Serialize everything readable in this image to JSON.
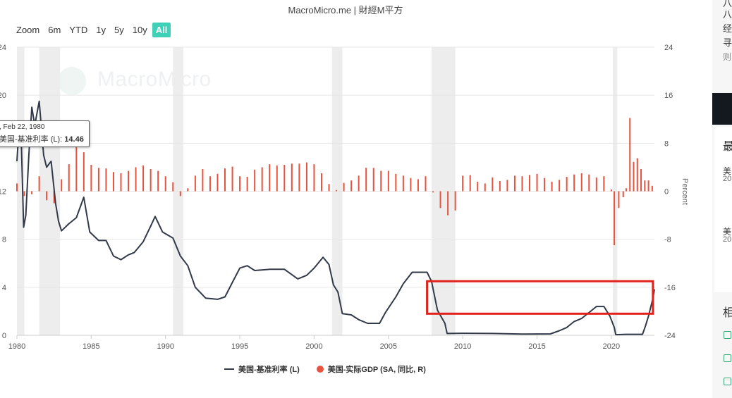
{
  "header": {
    "title": "MacroMicro.me | 財經M平方",
    "watermark": "MacroMicro"
  },
  "range_buttons": [
    {
      "label": "Zoom",
      "active": false
    },
    {
      "label": "6m",
      "active": false
    },
    {
      "label": "YTD",
      "active": false
    },
    {
      "label": "1y",
      "active": false
    },
    {
      "label": "5y",
      "active": false
    },
    {
      "label": "10y",
      "active": false
    },
    {
      "label": "All",
      "active": true
    }
  ],
  "tooltip": {
    "date": ", Feb 22, 1980",
    "series": "美国-基准利率 (L):",
    "value": "14.46"
  },
  "side_panel": {
    "snippets": [
      "八",
      "经",
      "寻",
      "则",
      "最",
      "美",
      "20",
      "美",
      "20",
      "相"
    ]
  },
  "colors": {
    "line": "#323a4a",
    "bars": "#e8533f",
    "recession": "#ededed",
    "highlight_box": "#e0221b",
    "accent_button": "#3fd1b8"
  },
  "chart_data": {
    "type": "line+bar",
    "x_range": [
      1980,
      2022.9
    ],
    "x_ticks": [
      1980,
      1985,
      1990,
      1995,
      2000,
      2005,
      2010,
      2015,
      2020
    ],
    "left_axis": {
      "ticks": [
        "0",
        "4",
        "8",
        "12",
        "16",
        "20",
        "24"
      ],
      "range": [
        0,
        24
      ]
    },
    "right_axis": {
      "label": "Percent",
      "ticks": [
        "-24",
        "-16",
        "-8",
        "0",
        "8",
        "16",
        "24"
      ],
      "range": [
        -24,
        24
      ]
    },
    "recessions": [
      [
        1980.0,
        1980.5
      ],
      [
        1981.5,
        1982.9
      ],
      [
        1990.5,
        1991.2
      ],
      [
        2001.2,
        2001.9
      ],
      [
        2007.9,
        2009.5
      ],
      [
        2020.1,
        2020.4
      ]
    ],
    "series": [
      {
        "name": "美国-基准利率 (L)",
        "kind": "line",
        "axis": "left",
        "points": [
          [
            1980.0,
            14.5
          ],
          [
            1980.15,
            17.5
          ],
          [
            1980.3,
            16.0
          ],
          [
            1980.45,
            9.0
          ],
          [
            1980.6,
            10.0
          ],
          [
            1980.8,
            15.0
          ],
          [
            1981.0,
            19.0
          ],
          [
            1981.2,
            17.5
          ],
          [
            1981.5,
            19.5
          ],
          [
            1981.8,
            15.0
          ],
          [
            1982.0,
            14.0
          ],
          [
            1982.3,
            14.5
          ],
          [
            1982.6,
            11.0
          ],
          [
            1982.8,
            9.5
          ],
          [
            1983.0,
            8.7
          ],
          [
            1983.5,
            9.3
          ],
          [
            1984.0,
            9.8
          ],
          [
            1984.5,
            11.5
          ],
          [
            1984.9,
            8.6
          ],
          [
            1985.5,
            7.9
          ],
          [
            1986.0,
            7.9
          ],
          [
            1986.5,
            6.6
          ],
          [
            1987.0,
            6.3
          ],
          [
            1987.5,
            6.7
          ],
          [
            1987.9,
            6.9
          ],
          [
            1988.5,
            7.8
          ],
          [
            1989.0,
            9.1
          ],
          [
            1989.3,
            9.9
          ],
          [
            1989.8,
            8.6
          ],
          [
            1990.5,
            8.1
          ],
          [
            1991.0,
            6.6
          ],
          [
            1991.5,
            5.8
          ],
          [
            1992.0,
            4.0
          ],
          [
            1992.7,
            3.1
          ],
          [
            1993.5,
            3.0
          ],
          [
            1994.0,
            3.2
          ],
          [
            1994.5,
            4.4
          ],
          [
            1995.0,
            5.6
          ],
          [
            1995.5,
            5.8
          ],
          [
            1996.0,
            5.4
          ],
          [
            1997.0,
            5.5
          ],
          [
            1998.0,
            5.5
          ],
          [
            1998.9,
            4.7
          ],
          [
            1999.5,
            5.0
          ],
          [
            2000.0,
            5.6
          ],
          [
            2000.6,
            6.5
          ],
          [
            2001.0,
            5.9
          ],
          [
            2001.3,
            4.2
          ],
          [
            2001.6,
            3.6
          ],
          [
            2001.9,
            1.8
          ],
          [
            2002.5,
            1.7
          ],
          [
            2003.0,
            1.3
          ],
          [
            2003.6,
            1.0
          ],
          [
            2004.4,
            1.0
          ],
          [
            2004.8,
            1.9
          ],
          [
            2005.5,
            3.2
          ],
          [
            2006.0,
            4.3
          ],
          [
            2006.6,
            5.25
          ],
          [
            2007.6,
            5.25
          ],
          [
            2007.9,
            4.5
          ],
          [
            2008.3,
            2.1
          ],
          [
            2008.8,
            1.0
          ],
          [
            2008.95,
            0.15
          ],
          [
            2010,
            0.17
          ],
          [
            2012,
            0.15
          ],
          [
            2014,
            0.1
          ],
          [
            2015.9,
            0.12
          ],
          [
            2016.5,
            0.38
          ],
          [
            2017.0,
            0.65
          ],
          [
            2017.5,
            1.15
          ],
          [
            2018.0,
            1.4
          ],
          [
            2018.5,
            1.9
          ],
          [
            2019.0,
            2.4
          ],
          [
            2019.5,
            2.4
          ],
          [
            2019.9,
            1.6
          ],
          [
            2020.2,
            0.65
          ],
          [
            2020.3,
            0.05
          ],
          [
            2021.0,
            0.08
          ],
          [
            2022.1,
            0.08
          ],
          [
            2022.3,
            0.8
          ],
          [
            2022.5,
            1.6
          ],
          [
            2022.65,
            2.33
          ],
          [
            2022.8,
            3.08
          ],
          [
            2022.9,
            3.83
          ]
        ]
      },
      {
        "name": "美国-实际GDP (SA, 同比, R)",
        "kind": "bar",
        "axis": "right",
        "points": [
          [
            1980.0,
            1.3
          ],
          [
            1980.5,
            -0.8
          ],
          [
            1981.0,
            -0.5
          ],
          [
            1981.5,
            2.5
          ],
          [
            1982.0,
            -1.5
          ],
          [
            1982.5,
            -2.0
          ],
          [
            1983.0,
            2.0
          ],
          [
            1983.5,
            4.5
          ],
          [
            1984.0,
            7.5
          ],
          [
            1984.5,
            6.5
          ],
          [
            1985.0,
            4.4
          ],
          [
            1985.5,
            3.9
          ],
          [
            1986.0,
            3.8
          ],
          [
            1986.5,
            3.2
          ],
          [
            1987.0,
            3.0
          ],
          [
            1987.5,
            3.4
          ],
          [
            1988.0,
            4.0
          ],
          [
            1988.5,
            4.3
          ],
          [
            1989.0,
            3.7
          ],
          [
            1989.5,
            3.4
          ],
          [
            1990.0,
            2.5
          ],
          [
            1990.5,
            1.5
          ],
          [
            1991.0,
            -0.8
          ],
          [
            1991.5,
            0.5
          ],
          [
            1992.0,
            2.6
          ],
          [
            1992.5,
            3.7
          ],
          [
            1993.0,
            2.5
          ],
          [
            1993.5,
            2.9
          ],
          [
            1994.0,
            3.8
          ],
          [
            1994.5,
            4.1
          ],
          [
            1995.0,
            2.5
          ],
          [
            1995.5,
            2.4
          ],
          [
            1996.0,
            3.6
          ],
          [
            1996.5,
            4.0
          ],
          [
            1997.0,
            4.5
          ],
          [
            1997.5,
            4.3
          ],
          [
            1998.0,
            4.4
          ],
          [
            1998.5,
            4.6
          ],
          [
            1999.0,
            4.6
          ],
          [
            1999.5,
            4.8
          ],
          [
            2000.0,
            4.5
          ],
          [
            2000.5,
            3.0
          ],
          [
            2001.0,
            1.2
          ],
          [
            2001.5,
            0.2
          ],
          [
            2002.0,
            1.4
          ],
          [
            2002.5,
            1.8
          ],
          [
            2003.0,
            2.6
          ],
          [
            2003.5,
            3.9
          ],
          [
            2004.0,
            3.9
          ],
          [
            2004.5,
            3.4
          ],
          [
            2005.0,
            3.4
          ],
          [
            2005.5,
            2.9
          ],
          [
            2006.0,
            2.6
          ],
          [
            2006.5,
            2.2
          ],
          [
            2007.0,
            2.0
          ],
          [
            2007.5,
            2.5
          ],
          [
            2008.0,
            -0.2
          ],
          [
            2008.5,
            -2.8
          ],
          [
            2009.0,
            -4.0
          ],
          [
            2009.5,
            -3.2
          ],
          [
            2010.0,
            2.6
          ],
          [
            2010.5,
            2.7
          ],
          [
            2011.0,
            1.6
          ],
          [
            2011.5,
            1.3
          ],
          [
            2012.0,
            2.3
          ],
          [
            2012.5,
            1.7
          ],
          [
            2013.0,
            1.9
          ],
          [
            2013.5,
            2.6
          ],
          [
            2014.0,
            2.5
          ],
          [
            2014.5,
            2.7
          ],
          [
            2015.0,
            2.9
          ],
          [
            2015.5,
            2.2
          ],
          [
            2016.0,
            1.6
          ],
          [
            2016.5,
            1.9
          ],
          [
            2017.0,
            2.4
          ],
          [
            2017.5,
            2.8
          ],
          [
            2018.0,
            3.0
          ],
          [
            2018.5,
            2.8
          ],
          [
            2019.0,
            2.3
          ],
          [
            2019.5,
            2.5
          ],
          [
            2020.0,
            0.3
          ],
          [
            2020.2,
            -9.0
          ],
          [
            2020.5,
            -2.8
          ],
          [
            2020.8,
            -1.0
          ],
          [
            2021.0,
            0.5
          ],
          [
            2021.25,
            12.2
          ],
          [
            2021.5,
            4.9
          ],
          [
            2021.75,
            5.5
          ],
          [
            2022.0,
            3.7
          ],
          [
            2022.25,
            1.8
          ],
          [
            2022.5,
            1.8
          ],
          [
            2022.75,
            0.9
          ]
        ]
      }
    ],
    "legend": {
      "placement": "bottom-center"
    },
    "annotation": {
      "type": "highlight-rectangle",
      "color": "red",
      "x": [
        2007.6,
        2022.8
      ],
      "y_left": [
        1.8,
        3.8
      ]
    }
  }
}
